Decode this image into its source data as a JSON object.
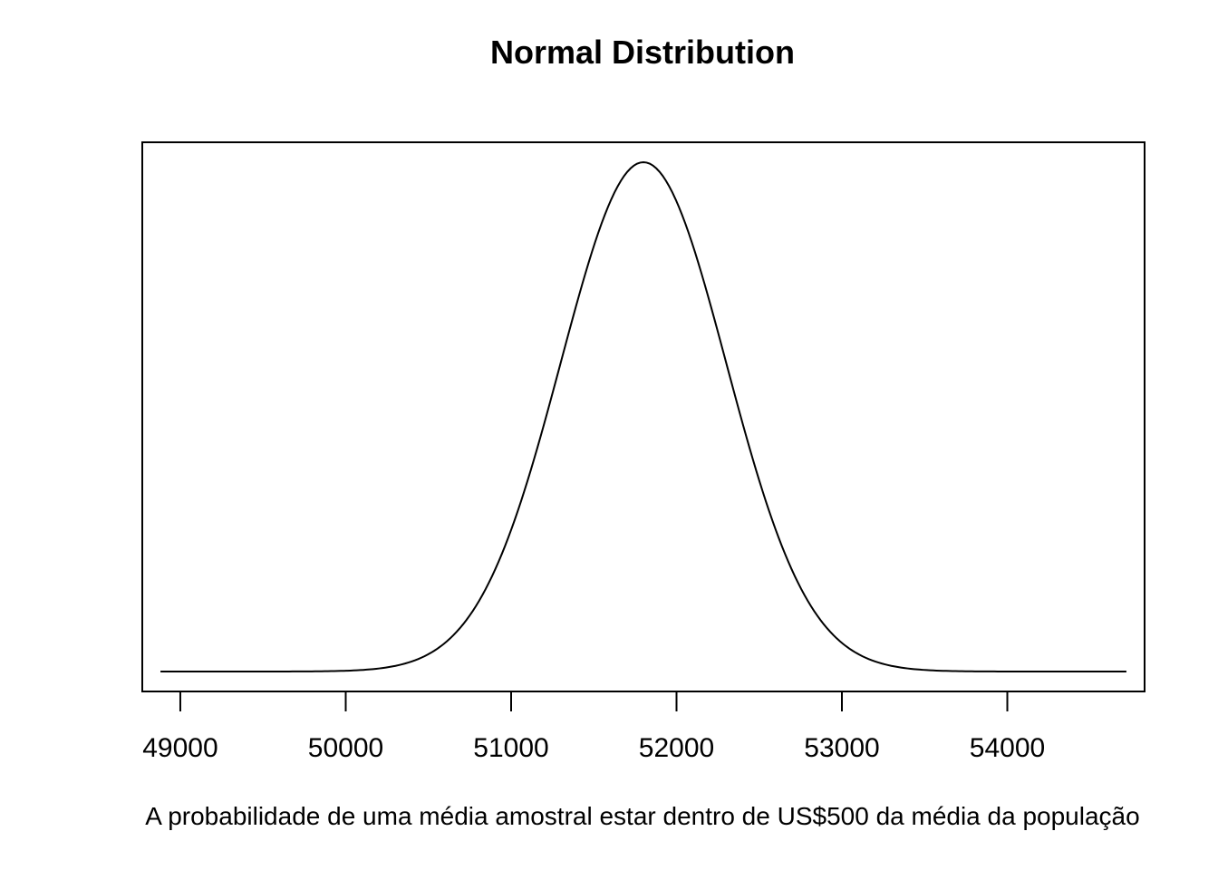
{
  "chart_data": {
    "type": "line",
    "title": "Normal Distribution",
    "xlabel": "A probabilidade de uma média amostral estar dentro de US$500 da média da população",
    "ylabel": "",
    "series": [
      {
        "distribution": "normal",
        "mean": 51800,
        "sd": 500,
        "x_range": [
          48880,
          54720
        ]
      }
    ],
    "xlim": [
      48770,
      54830
    ],
    "x_ticks": [
      49000,
      50000,
      51000,
      52000,
      53000,
      54000
    ],
    "x_tick_labels": [
      "49000",
      "50000",
      "51000",
      "52000",
      "53000",
      "54000"
    ],
    "y_axis_shown": false,
    "grid": false,
    "legend": "none",
    "line_color": "#000000"
  }
}
